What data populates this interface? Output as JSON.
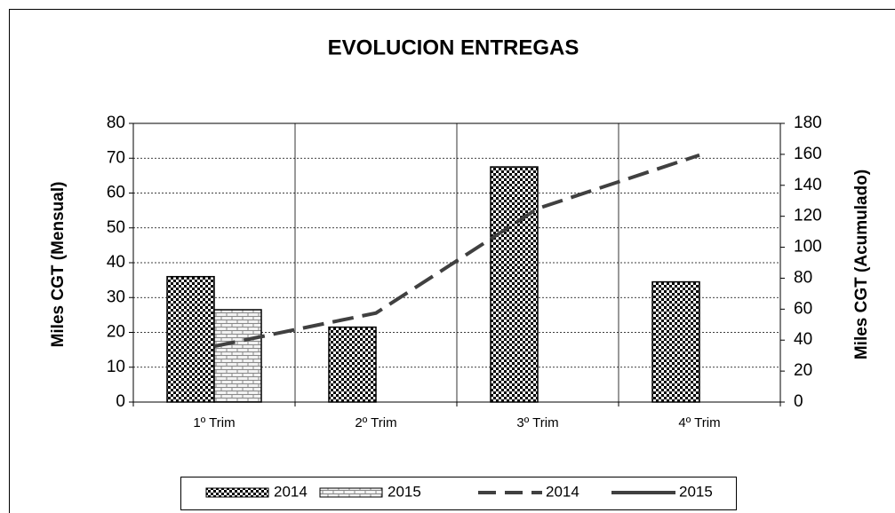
{
  "chart_data": {
    "type": "bar",
    "title": "EVOLUCION ENTREGAS",
    "y_label": "Miles CGT (Mensual)",
    "y2_label": "Miles CGT (Acumulado)",
    "categories": [
      "1º Trim",
      "2º Trim",
      "3º Trim",
      "4º Trim"
    ],
    "series": [
      {
        "name": "2014",
        "type": "bar",
        "pattern": "checker",
        "color": "#000000",
        "values": [
          36,
          21.5,
          67.5,
          34.5
        ]
      },
      {
        "name": "2015",
        "type": "bar",
        "pattern": "brick",
        "color": "#000000",
        "values": [
          26.5,
          null,
          null,
          null
        ]
      },
      {
        "name": "2014",
        "type": "line",
        "dashed": true,
        "axis": "y2",
        "color": "#404040",
        "values": [
          36,
          57.5,
          125,
          159.5
        ]
      },
      {
        "name": "2015",
        "type": "line",
        "dashed": false,
        "axis": "y2",
        "color": "#404040",
        "values": [
          26.5,
          null,
          null,
          null
        ]
      }
    ],
    "ylim": [
      0,
      80
    ],
    "yticks": [
      0,
      10,
      20,
      30,
      40,
      50,
      60,
      70,
      80
    ],
    "y2lim": [
      0,
      180
    ],
    "y2ticks": [
      0,
      20,
      40,
      60,
      80,
      100,
      120,
      140,
      160,
      180
    ],
    "grid": true,
    "legend": "bottom"
  }
}
